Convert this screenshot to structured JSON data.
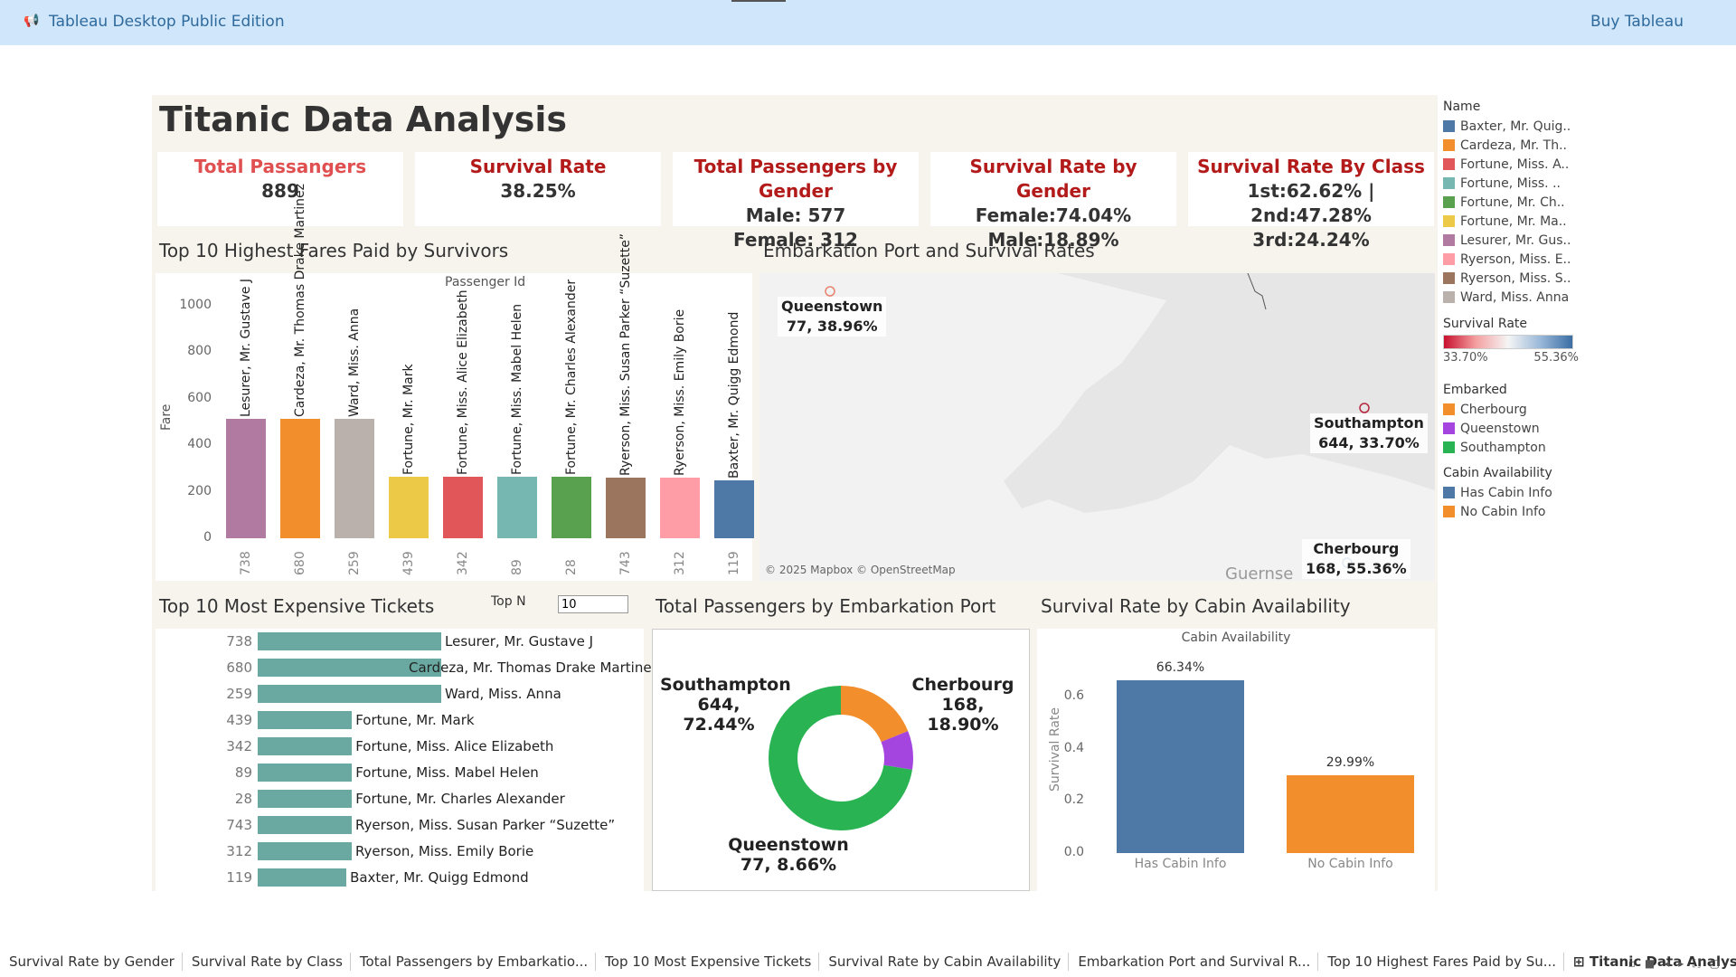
{
  "app": {
    "title": "Tableau Desktop Public Edition",
    "buy_label": "Buy Tableau"
  },
  "dashboard": {
    "title": "Titanic Data Analysis"
  },
  "kpis": [
    {
      "title": "Total Passangers",
      "line1": "889",
      "line2": ""
    },
    {
      "title": "Survival Rate",
      "line1": "38.25%",
      "line2": ""
    },
    {
      "title": "Total Passengers by Gender",
      "line1": "Male: 577",
      "line2": "Female: 312"
    },
    {
      "title": "Survival Rate by Gender",
      "line1": "Female:74.04%",
      "line2": "Male:18.89%"
    },
    {
      "title": "Survival Rate By Class",
      "line1": "1st:62.62% | 2nd:47.28%",
      "line2": "3rd:24.24%"
    }
  ],
  "fares": {
    "title": "Top 10 Highest Fares Paid by Survivors",
    "header": "Passenger Id",
    "ylabel": "Fare",
    "yticks": [
      "1000",
      "800",
      "600",
      "400",
      "200",
      "0"
    ],
    "ids": [
      "738",
      "680",
      "259",
      "439",
      "342",
      "89",
      "28",
      "743",
      "312",
      "119"
    ],
    "names": [
      "Lesurer, Mr. Gustave J",
      "Cardeza, Mr. Thomas Drake Martinez",
      "Ward, Miss. Anna",
      "Fortune, Mr. Mark",
      "Fortune, Miss. Alice Elizabeth",
      "Fortune, Miss. Mabel Helen",
      "Fortune, Mr. Charles Alexander",
      "Ryerson, Miss. Susan Parker “Suzette”",
      "Ryerson, Miss. Emily Borie",
      "Baxter, Mr. Quigg Edmond"
    ],
    "values": [
      512.33,
      512.33,
      512.33,
      263,
      263,
      263,
      263,
      262.38,
      262.38,
      247.52
    ],
    "colors": [
      "#b07aa1",
      "#f28e2b",
      "#bab0ac",
      "#edc948",
      "#e15759",
      "#76b7b2",
      "#59a14f",
      "#9c755f",
      "#ff9da7",
      "#4e79a7"
    ]
  },
  "map": {
    "title": "Embarkation Port and Survival Rates",
    "attribution": "© 2025 Mapbox © OpenStreetMap",
    "bg_label": "Guernse",
    "ports": [
      {
        "name": "Queenstown",
        "value": "77, 38.96%"
      },
      {
        "name": "Southampton",
        "value": "644, 33.70%"
      },
      {
        "name": "Cherbourg",
        "value": "168, 55.36%"
      }
    ]
  },
  "legend": {
    "name_title": "Name",
    "names": [
      {
        "label": "Baxter, Mr. Quig..",
        "color": "#4e79a7"
      },
      {
        "label": "Cardeza, Mr. Th..",
        "color": "#f28e2b"
      },
      {
        "label": "Fortune, Miss. A..",
        "color": "#e15759"
      },
      {
        "label": "Fortune, Miss. ..",
        "color": "#76b7b2"
      },
      {
        "label": "Fortune, Mr. Ch..",
        "color": "#59a14f"
      },
      {
        "label": "Fortune, Mr. Ma..",
        "color": "#edc948"
      },
      {
        "label": "Lesurer, Mr. Gus..",
        "color": "#b07aa1"
      },
      {
        "label": "Ryerson, Miss. E..",
        "color": "#ff9da7"
      },
      {
        "label": "Ryerson, Miss. S..",
        "color": "#9c755f"
      },
      {
        "label": "Ward, Miss. Anna",
        "color": "#bab0ac"
      }
    ],
    "survival_title": "Survival Rate",
    "survival_min": "33.70%",
    "survival_max": "55.36%",
    "embarked_title": "Embarked",
    "embarked": [
      {
        "label": "Cherbourg",
        "color": "#f28e2b"
      },
      {
        "label": "Queenstown",
        "color": "#a545e0"
      },
      {
        "label": "Southampton",
        "color": "#2ab353"
      }
    ],
    "cabin_title": "Cabin Availability",
    "cabin": [
      {
        "label": "Has Cabin Info",
        "color": "#4e79a7"
      },
      {
        "label": "No Cabin Info",
        "color": "#f28e2b"
      }
    ]
  },
  "tickets": {
    "title": "Top 10 Most Expensive Tickets",
    "topn_label": "Top N",
    "topn_value": "10",
    "ids": [
      "738",
      "680",
      "259",
      "439",
      "342",
      "89",
      "28",
      "743",
      "312",
      "119"
    ],
    "names": [
      "Lesurer, Mr. Gustave J",
      "Cardeza, Mr. Thomas Drake Martinez",
      "Ward, Miss. Anna",
      "Fortune, Mr. Mark",
      "Fortune, Miss. Alice Elizabeth",
      "Fortune, Miss. Mabel Helen",
      "Fortune, Mr. Charles Alexander",
      "Ryerson, Miss. Susan Parker “Suzette”",
      "Ryerson, Miss. Emily Borie",
      "Baxter, Mr. Quigg Edmond"
    ],
    "values": [
      512.33,
      512.33,
      512.33,
      263,
      263,
      263,
      263,
      262.38,
      262.38,
      247.52
    ],
    "bar_color": "#6aa9a1"
  },
  "donut": {
    "title": "Total Passengers by Embarkation Port",
    "segments": [
      {
        "name": "Southampton",
        "value": "644, 72.44%",
        "pct": 72.44,
        "color": "#2ab353"
      },
      {
        "name": "Cherbourg",
        "value": "168, 18.90%",
        "pct": 18.9,
        "color": "#f28e2b"
      },
      {
        "name": "Queenstown",
        "value": "77, 8.66%",
        "pct": 8.66,
        "color": "#a545e0"
      }
    ]
  },
  "cabin_chart": {
    "title": "Survival Rate by Cabin Availability",
    "header": "Cabin Availability",
    "ylabel": "Survival Rate",
    "yticks": [
      "0.6",
      "0.4",
      "0.2",
      "0.0"
    ],
    "categories": [
      "Has Cabin Info",
      "No Cabin Info"
    ],
    "labels": [
      "66.34%",
      "29.99%"
    ],
    "values": [
      0.6634,
      0.2999
    ],
    "colors": [
      "#4e79a7",
      "#f28e2b"
    ]
  },
  "chart_data": [
    {
      "type": "bar",
      "title": "Top 10 Highest Fares Paid by Survivors",
      "xlabel": "Passenger Id",
      "ylabel": "Fare",
      "categories": [
        "738",
        "680",
        "259",
        "439",
        "342",
        "89",
        "28",
        "743",
        "312",
        "119"
      ],
      "values": [
        512.33,
        512.33,
        512.33,
        263,
        263,
        263,
        263,
        262.38,
        262.38,
        247.52
      ],
      "ylim": [
        0,
        1000
      ]
    },
    {
      "type": "bar",
      "title": "Top 10 Most Expensive Tickets",
      "categories": [
        "738",
        "680",
        "259",
        "439",
        "342",
        "89",
        "28",
        "743",
        "312",
        "119"
      ],
      "values": [
        512.33,
        512.33,
        512.33,
        263,
        263,
        263,
        263,
        262.38,
        262.38,
        247.52
      ]
    },
    {
      "type": "pie",
      "title": "Total Passengers by Embarkation Port",
      "categories": [
        "Southampton",
        "Cherbourg",
        "Queenstown"
      ],
      "values": [
        644,
        168,
        77
      ]
    },
    {
      "type": "bar",
      "title": "Survival Rate by Cabin Availability",
      "xlabel": "Cabin Availability",
      "ylabel": "Survival Rate",
      "categories": [
        "Has Cabin Info",
        "No Cabin Info"
      ],
      "values": [
        0.6634,
        0.2999
      ],
      "ylim": [
        0,
        0.7
      ]
    }
  ],
  "tabs": [
    "Survival Rate by Gender",
    "Survival Rate by Class",
    "Total Passengers by Embarkatio...",
    "Top 10 Most Expensive Tickets",
    "Survival Rate by Cabin Availability",
    "Embarkation Port and Survival R...",
    "Top 10 Highest Fares Paid by Su...",
    "Titanic Data Analysis"
  ]
}
